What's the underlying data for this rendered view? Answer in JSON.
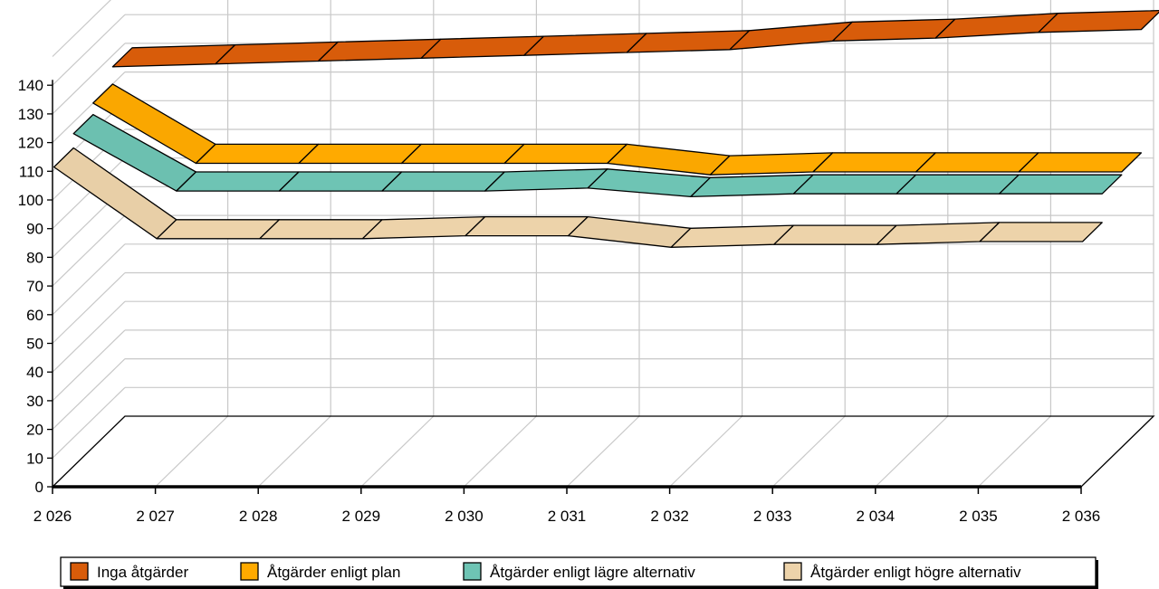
{
  "chart_data": {
    "type": "area",
    "title": "",
    "xlabel": "",
    "ylabel": "",
    "categories": [
      "2 026",
      "2 027",
      "2 028",
      "2 029",
      "2 030",
      "2 031",
      "2 032",
      "2 033",
      "2 034",
      "2 035",
      "2 036"
    ],
    "ylim": [
      0,
      140
    ],
    "yticks": [
      "0",
      "10",
      "20",
      "30",
      "40",
      "50",
      "60",
      "70",
      "80",
      "90",
      "100",
      "110",
      "120",
      "130",
      "140"
    ],
    "grid": true,
    "legend_position": "bottom",
    "series": [
      {
        "name": "Inga åtgärder",
        "color": "#D85C0A",
        "values": [
          126,
          127,
          128,
          129,
          130,
          131,
          132,
          135,
          136,
          138,
          139
        ]
      },
      {
        "name": "Åtgärder enligt plan",
        "color": "#FFAA00",
        "values": [
          120,
          99,
          99,
          99,
          99,
          99,
          95,
          96,
          96,
          96,
          96
        ]
      },
      {
        "name": "Åtgärder enligt lägre alternativ",
        "color": "#6EC4B4",
        "values": [
          116,
          96,
          96,
          96,
          96,
          97,
          94,
          95,
          95,
          95,
          95
        ]
      },
      {
        "name": "Åtgärder enligt högre alternativ",
        "color": "#EDD3AA",
        "values": [
          111,
          86,
          86,
          86,
          87,
          87,
          83,
          84,
          84,
          85,
          85
        ]
      }
    ]
  }
}
